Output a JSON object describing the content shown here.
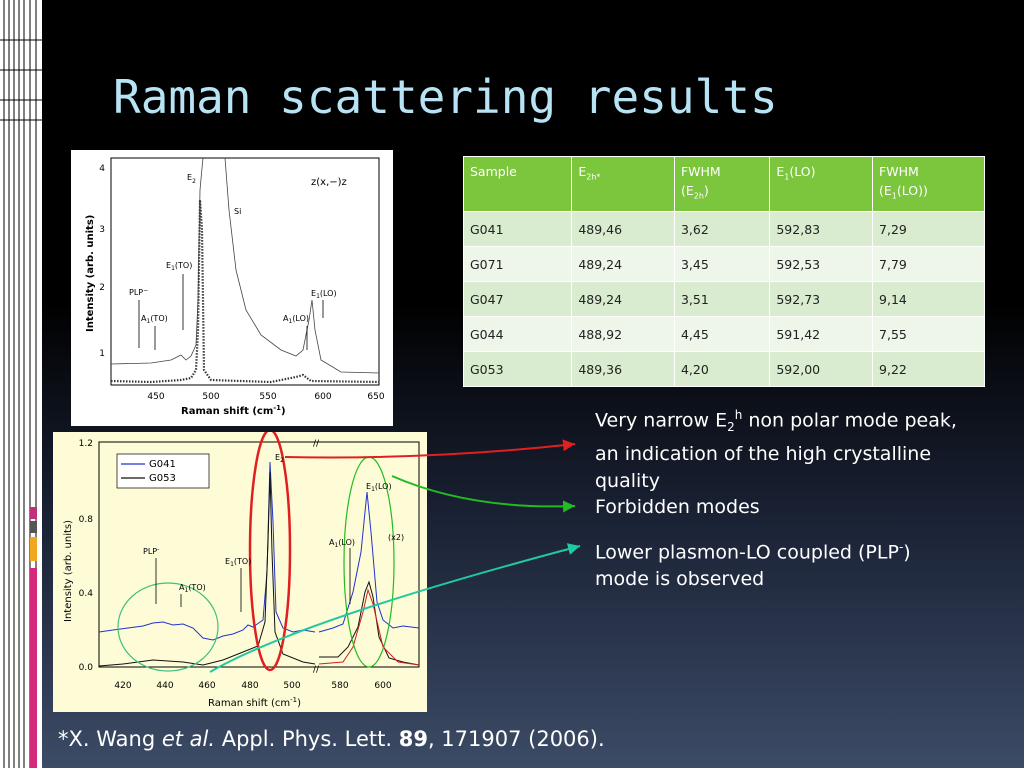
{
  "slide": {
    "title": "Raman scattering results",
    "reference": {
      "prefix": "*X. Wang ",
      "etal": "et al.",
      "journal": " Appl. Phys. Lett. ",
      "volume": "89",
      "rest": ", 171907 (2006)."
    }
  },
  "table": {
    "headers": {
      "sample": "Sample",
      "e2h_base": "E",
      "e2h_sub": "2h*",
      "fwhm1_line1": "FWHM",
      "fwhm1_paren_open": "(E",
      "fwhm1_sub": "2h",
      "fwhm1_paren_close": ")",
      "e1lo_base": "E",
      "e1lo_sub": "1",
      "e1lo_rest": "(LO)",
      "fwhm2_line1": "FWHM",
      "fwhm2_open": "(E",
      "fwhm2_sub": "1",
      "fwhm2_rest": "(LO))"
    },
    "rows": [
      [
        "G041",
        "489,46",
        "3,62",
        "592,83",
        "7,29"
      ],
      [
        "G071",
        "489,24",
        "3,45",
        "592,53",
        "7,79"
      ],
      [
        "G047",
        "489,24",
        "3,51",
        "592,73",
        "9,14"
      ],
      [
        "G044",
        "488,92",
        "4,45",
        "591,42",
        "7,55"
      ],
      [
        "G053",
        "489,36",
        "4,20",
        "592,00",
        "9,22"
      ]
    ]
  },
  "bullets": {
    "b1_pre": "Very narrow E",
    "b1_sub": "2",
    "b1_sup": "h",
    "b1_post": " non polar mode peak, an indication of the high crystalline quality",
    "b2": "Forbidden modes",
    "b3_pre": "Lower plasmon-LO coupled (PLP",
    "b3_sup": "-",
    "b3_post": ") mode is observed"
  },
  "figure_top": {
    "geometry_label": "z(x,−)z",
    "ylabel": "Intensity (arb. units)",
    "xlabel": "Raman shift (cm",
    "xlabel_sup": "-1",
    "xlabel_end": ")",
    "xticks": [
      "450",
      "500",
      "550",
      "600",
      "650"
    ],
    "yticks": [
      "1",
      "2",
      "3",
      "4"
    ],
    "labels": {
      "e2": "E",
      "e2_sub": "2",
      "e2_sup": "h",
      "si": "Si",
      "e1to": "E",
      "e1to_sub": "1",
      "e1to_rest": "(TO)",
      "plp": "PLP",
      "plp_sup": "−",
      "a1to": "A",
      "a1to_sub": "1",
      "a1to_rest": "(TO)",
      "a1lo": "A",
      "a1lo_sub": "1",
      "a1lo_rest": "(LO)",
      "e1lo": "E",
      "e1lo_sub": "1",
      "e1lo_rest": "(LO)"
    }
  },
  "figure_bottom": {
    "ylabel": "Intensity (arb. units)",
    "xlabel": "Raman shift (cm",
    "xlabel_sup": "-1",
    "xlabel_end": ")",
    "xticks": [
      "420",
      "440",
      "460",
      "480",
      "500",
      "580",
      "600"
    ],
    "yticks": [
      "0.0",
      "0.4",
      "0.8",
      "1.2"
    ],
    "legend": [
      "G041",
      "G053"
    ],
    "labels": {
      "e2": "E",
      "e2_sub": "2",
      "e1lo": "E",
      "e1lo_sub": "1",
      "e1lo_rest": "(LO)",
      "a1lo": "A",
      "a1lo_sub": "1",
      "a1lo_rest": "(LO)",
      "x2": "(x2)",
      "plp": "PLP",
      "plp_sup": "-",
      "e1to": "E",
      "e1to_sub": "1",
      "e1to_rest": "(TO)",
      "a1to": "A",
      "a1to_sub": "1",
      "a1to_rest": "(TO)"
    },
    "colors": {
      "g041": "#2233cc",
      "g053": "#111111",
      "red_fit": "#cc2222"
    }
  },
  "colors": {
    "title": "#b7e3f5",
    "table_header": "#7cc63d",
    "arrow_red": "#e02020",
    "arrow_green": "#22bb22",
    "arrow_teal": "#20c9a0"
  }
}
